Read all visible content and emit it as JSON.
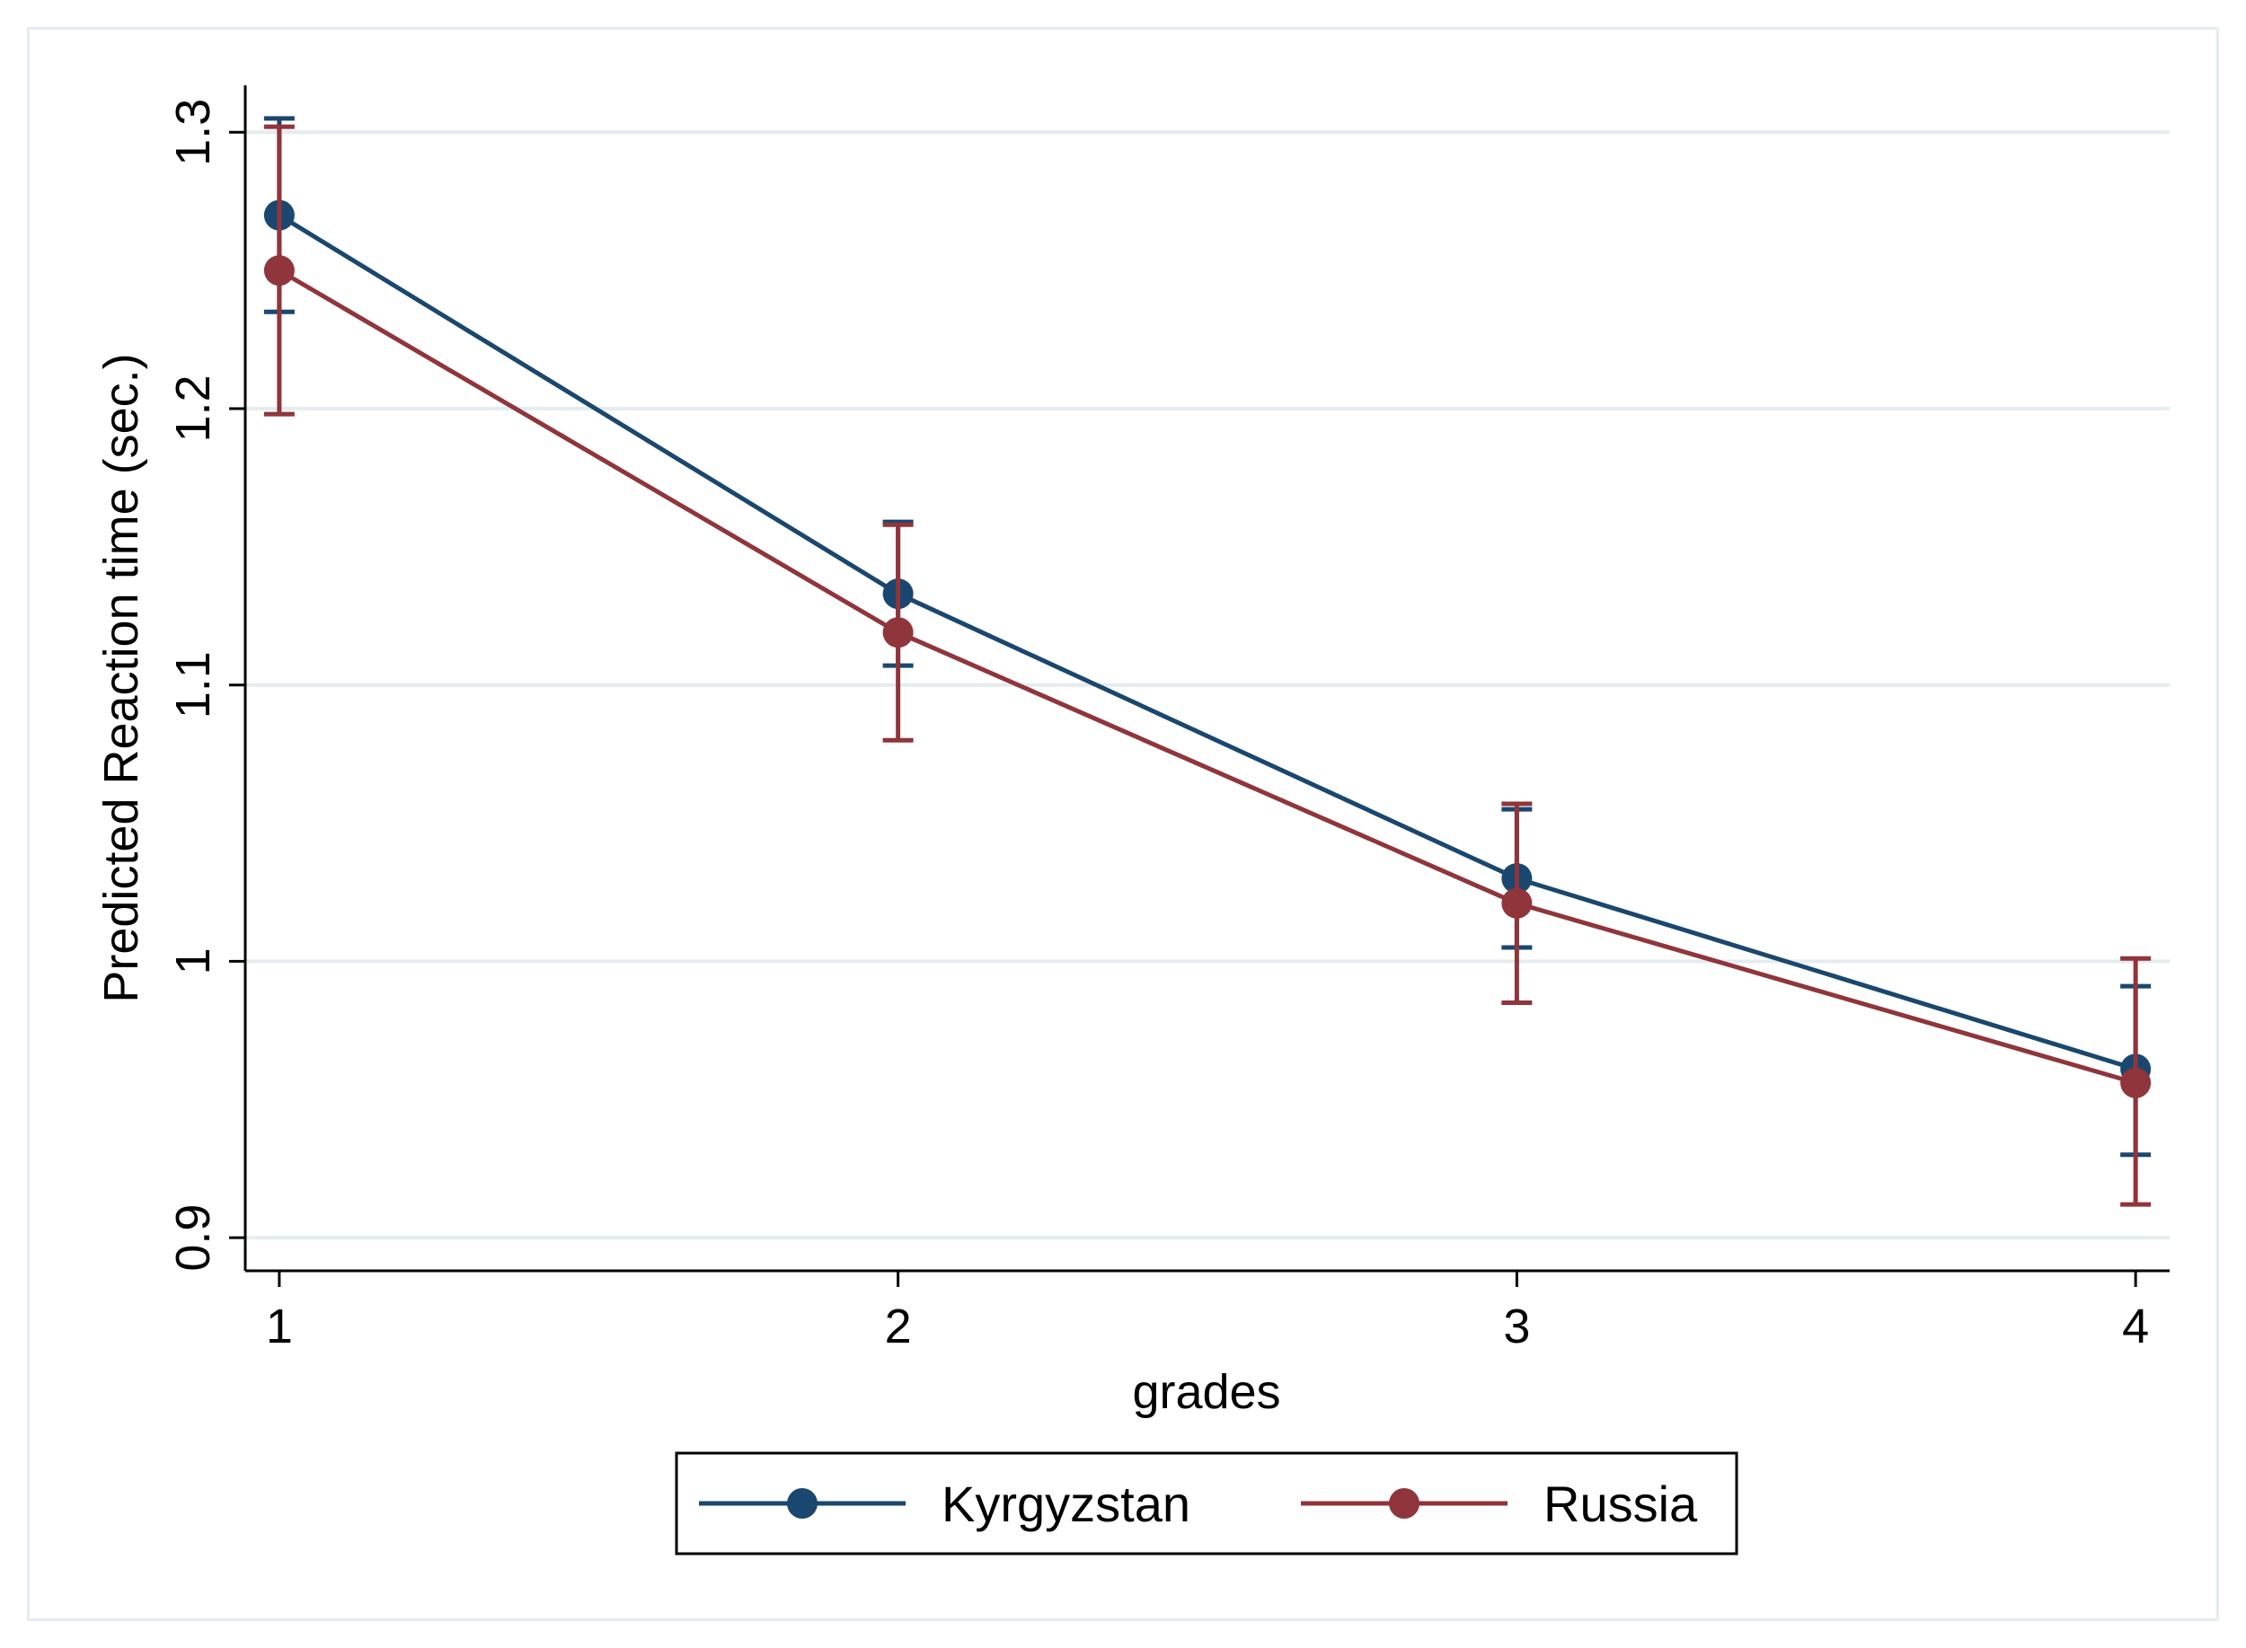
{
  "chart_data": {
    "type": "line",
    "title": "",
    "xlabel": "grades",
    "ylabel": "Predicted Reaction time (sec.)",
    "x": [
      1,
      2,
      3,
      4
    ],
    "xticks": [
      "1",
      "2",
      "3",
      "4"
    ],
    "xlim": [
      0.945,
      4.055
    ],
    "yticks": [
      "0.9",
      "1",
      "1.1",
      "1.2",
      "1.3"
    ],
    "ytick_values": [
      0.9,
      1.0,
      1.1,
      1.2,
      1.3
    ],
    "ylim": [
      0.888,
      1.317
    ],
    "grid": true,
    "legend_position": "bottom-center",
    "series": [
      {
        "name": "Kyrgyzstan",
        "color": "#1a476f",
        "values": [
          1.27,
          1.133,
          1.03,
          0.961
        ],
        "ci_low": [
          1.235,
          1.107,
          1.005,
          0.93
        ],
        "ci_high": [
          1.305,
          1.159,
          1.055,
          0.991
        ]
      },
      {
        "name": "Russia",
        "color": "#90353b",
        "values": [
          1.25,
          1.119,
          1.021,
          0.956
        ],
        "ci_low": [
          1.198,
          1.08,
          0.985,
          0.912
        ],
        "ci_high": [
          1.302,
          1.158,
          1.057,
          1.001
        ]
      }
    ]
  }
}
